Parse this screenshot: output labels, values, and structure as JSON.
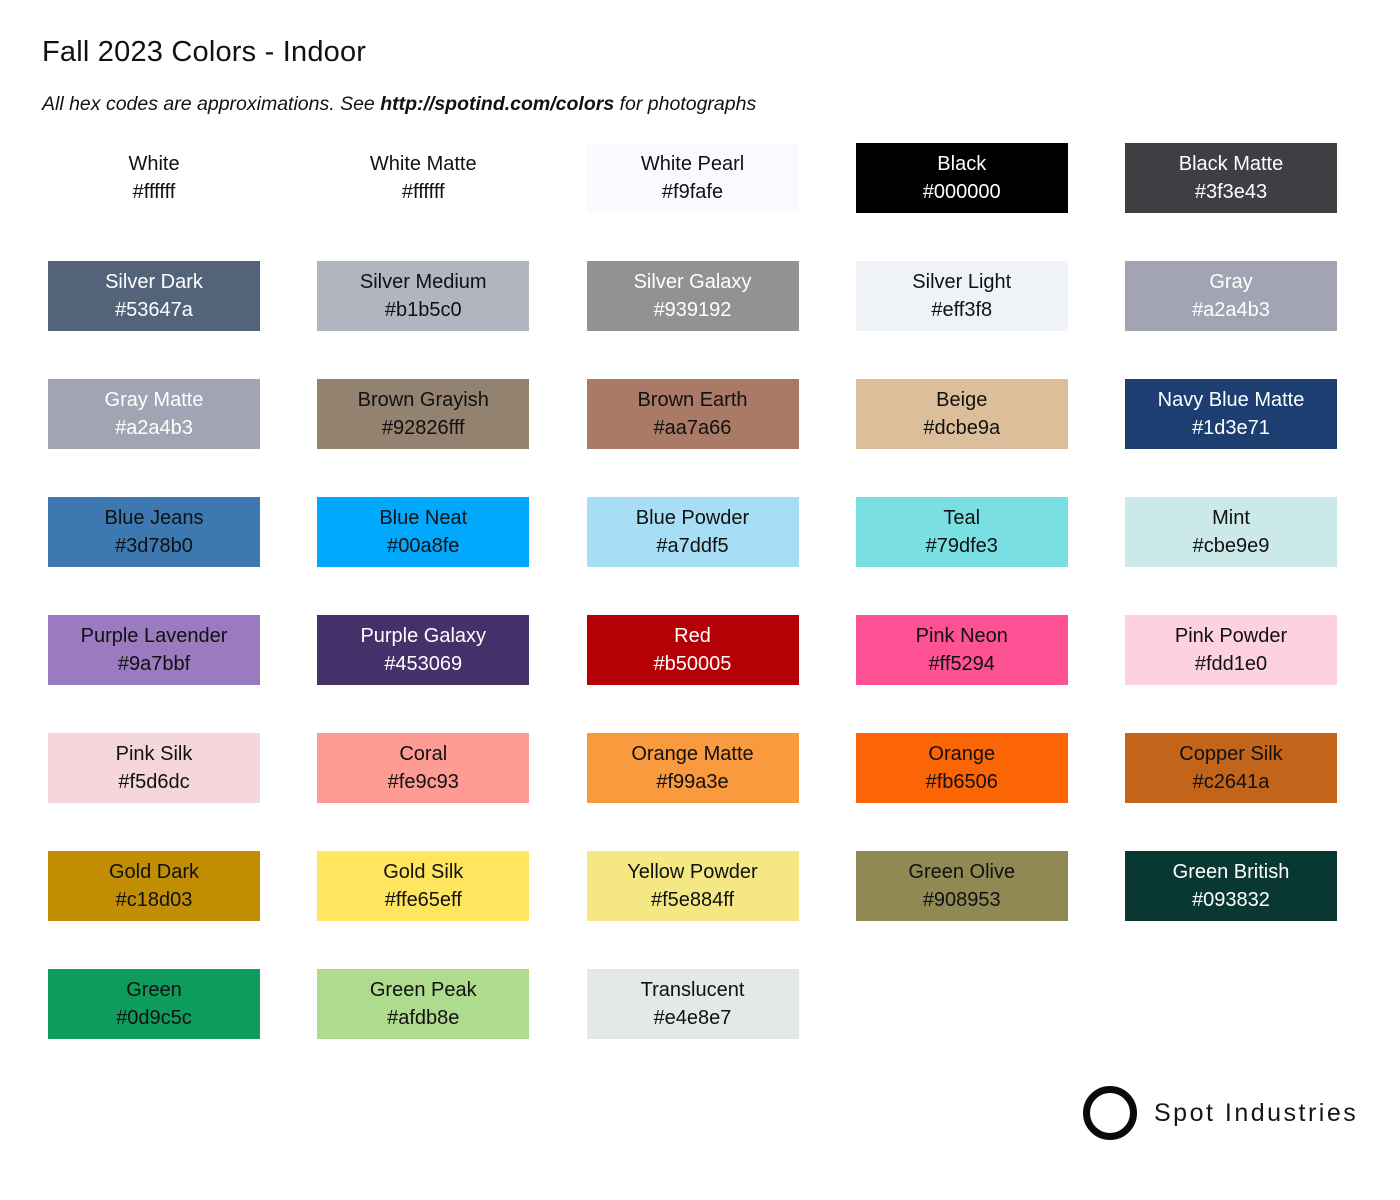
{
  "page": {
    "title": "Fall 2023 Colors - Indoor",
    "subtitle_prefix": "All hex codes are approximations. See ",
    "subtitle_link": "http://spotind.com/colors",
    "subtitle_suffix": " for photographs",
    "brand": "Spot Industries",
    "logo_icon": "circle-outline"
  },
  "colors": {
    "dark_text": "#111111",
    "light_text": "#ffffff",
    "page_background": "#ffffff",
    "logo_color": "#0a0a0a"
  },
  "swatches": [
    {
      "name": "White",
      "hex": "#ffffff",
      "text": "dark"
    },
    {
      "name": "White Matte",
      "hex": "#ffffff",
      "text": "dark"
    },
    {
      "name": "White Pearl",
      "hex": "#f9fafe",
      "text": "dark"
    },
    {
      "name": "Black",
      "hex": "#000000",
      "text": "light"
    },
    {
      "name": "Black Matte",
      "hex": "#3f3e43",
      "text": "light"
    },
    {
      "name": "Silver Dark",
      "hex": "#53647a",
      "text": "light"
    },
    {
      "name": "Silver Medium",
      "hex": "#b1b5c0",
      "text": "dark"
    },
    {
      "name": "Silver Galaxy",
      "hex": "#939192",
      "text": "light"
    },
    {
      "name": "Silver Light",
      "hex": "#eff3f8",
      "text": "dark"
    },
    {
      "name": "Gray",
      "hex": "#a2a4b3",
      "text": "light"
    },
    {
      "name": "Gray Matte",
      "hex": "#a2a4b3",
      "text": "light"
    },
    {
      "name": "Brown Grayish",
      "hex": "#92826fff",
      "text": "dark"
    },
    {
      "name": "Brown Earth",
      "hex": "#aa7a66",
      "text": "dark"
    },
    {
      "name": "Beige",
      "hex": "#dcbe9a",
      "text": "dark"
    },
    {
      "name": "Navy Blue Matte",
      "hex": "#1d3e71",
      "text": "light"
    },
    {
      "name": "Blue Jeans",
      "hex": "#3d78b0",
      "text": "dark"
    },
    {
      "name": "Blue Neat",
      "hex": "#00a8fe",
      "text": "dark"
    },
    {
      "name": "Blue Powder",
      "hex": "#a7ddf5",
      "text": "dark"
    },
    {
      "name": "Teal",
      "hex": "#79dfe3",
      "text": "dark"
    },
    {
      "name": "Mint",
      "hex": "#cbe9e9",
      "text": "dark"
    },
    {
      "name": "Purple Lavender",
      "hex": "#9a7bbf",
      "text": "dark"
    },
    {
      "name": "Purple Galaxy",
      "hex": "#453069",
      "text": "light"
    },
    {
      "name": "Red",
      "hex": "#b50005",
      "text": "light"
    },
    {
      "name": "Pink Neon",
      "hex": "#ff5294",
      "text": "dark"
    },
    {
      "name": "Pink Powder",
      "hex": "#fdd1e0",
      "text": "dark"
    },
    {
      "name": "Pink Silk",
      "hex": "#f5d6dc",
      "text": "dark"
    },
    {
      "name": "Coral",
      "hex": "#fe9c93",
      "text": "dark"
    },
    {
      "name": "Orange Matte",
      "hex": "#f99a3e",
      "text": "dark"
    },
    {
      "name": "Orange",
      "hex": "#fb6506",
      "text": "dark"
    },
    {
      "name": "Copper Silk",
      "hex": "#c2641a",
      "text": "dark"
    },
    {
      "name": "Gold Dark",
      "hex": "#c18d03",
      "text": "dark"
    },
    {
      "name": "Gold Silk",
      "hex": "#ffe65eff",
      "text": "dark"
    },
    {
      "name": "Yellow Powder",
      "hex": "#f5e884ff",
      "text": "dark"
    },
    {
      "name": "Green Olive",
      "hex": "#908953",
      "text": "dark"
    },
    {
      "name": "Green British",
      "hex": "#093832",
      "text": "light"
    },
    {
      "name": "Green",
      "hex": "#0d9c5c",
      "text": "dark"
    },
    {
      "name": "Green Peak",
      "hex": "#afdb8e",
      "text": "dark"
    },
    {
      "name": "Translucent",
      "hex": "#e4e8e7",
      "text": "dark"
    }
  ]
}
